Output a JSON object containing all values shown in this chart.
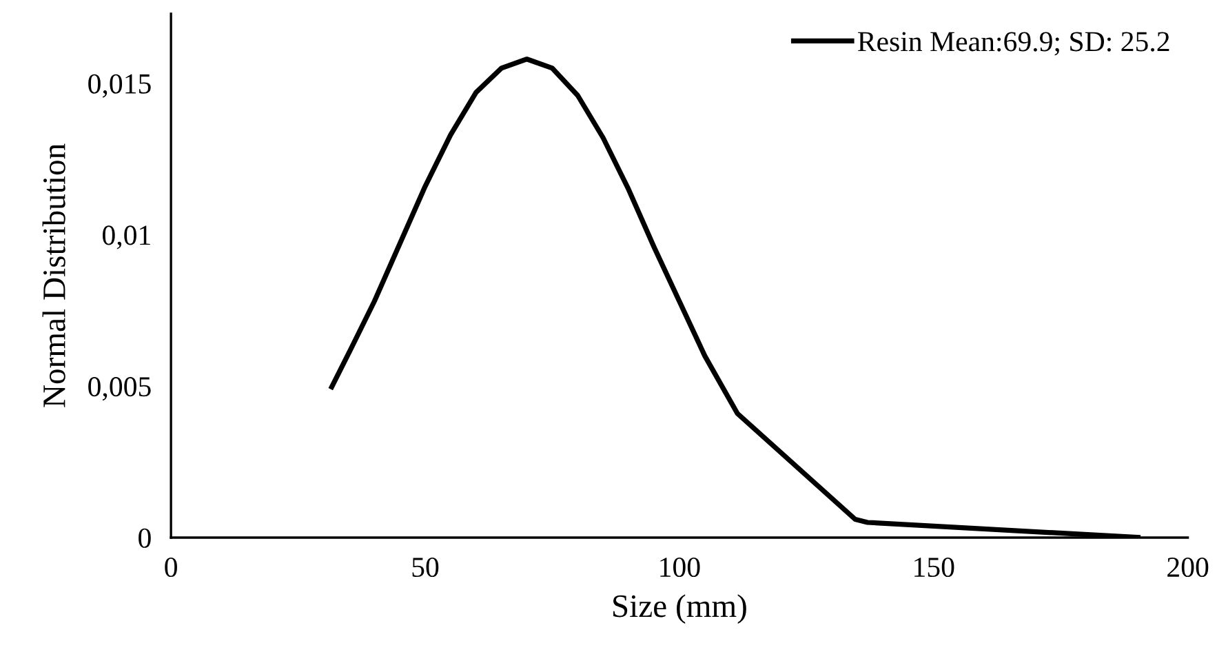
{
  "chart_data": {
    "type": "line",
    "xlabel": "Size (mm)",
    "ylabel": "Normal Distribution",
    "x": [
      31.4,
      35,
      40,
      45,
      50,
      55,
      60,
      65,
      70,
      75,
      80,
      85,
      90,
      95,
      100,
      105,
      111.4,
      134.6,
      137,
      190.7
    ],
    "series": [
      {
        "name": "Resin Mean:69.9; SD: 25.2",
        "color": "#000000",
        "values": [
          0.0049,
          0.0061,
          0.0078,
          0.0097,
          0.0116,
          0.0133,
          0.0147,
          0.0155,
          0.0158,
          0.0155,
          0.0146,
          0.0132,
          0.0115,
          0.0096,
          0.0078,
          0.006,
          0.0041,
          0.0006,
          0.0005,
          0.0
        ]
      }
    ],
    "xlim": [
      0,
      200
    ],
    "xticks": [
      0,
      50,
      100,
      150,
      200
    ],
    "ylim": [
      0,
      0.0173
    ],
    "yticks": [
      {
        "value": 0,
        "label": "0"
      },
      {
        "value": 0.005,
        "label": "0,005"
      },
      {
        "value": 0.01,
        "label": "0,01"
      },
      {
        "value": 0.015,
        "label": "0,015"
      }
    ],
    "grid": false,
    "legend": "top right",
    "marker": "none",
    "line_style": "solid"
  }
}
